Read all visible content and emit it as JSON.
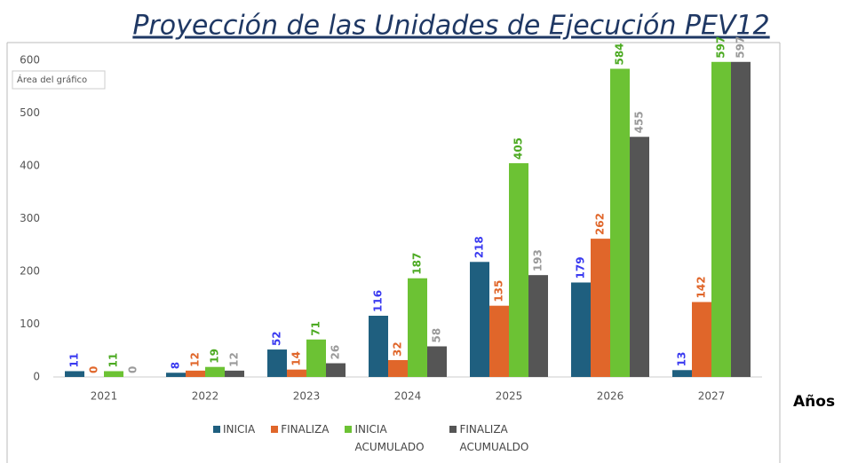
{
  "chart_data": {
    "type": "bar",
    "title": "Proyección de las Unidades de Ejecución PEV12",
    "tooltip": "Área del gráfico",
    "x_label": "Años",
    "categories": [
      "2021",
      "2022",
      "2023",
      "2024",
      "2025",
      "2026",
      "2027"
    ],
    "series": [
      {
        "name": "INICIA",
        "color": "#1f5f7f",
        "label_color": "#3a3af0",
        "values": [
          11,
          8,
          52,
          116,
          218,
          179,
          13
        ]
      },
      {
        "name": "FINALIZA",
        "color": "#e0662a",
        "label_color": "#e0662a",
        "values": [
          0,
          12,
          14,
          32,
          135,
          262,
          142
        ]
      },
      {
        "name": "INICIA ACUMULADO",
        "color": "#6cc234",
        "label_color": "#4caa22",
        "values": [
          11,
          19,
          71,
          187,
          405,
          584,
          597
        ]
      },
      {
        "name": "FINALIZA ACUMUALDO",
        "color": "#555555",
        "label_color": "#9a9a9a",
        "values": [
          0,
          12,
          26,
          58,
          193,
          455,
          597
        ]
      }
    ],
    "ylim": [
      0,
      600
    ],
    "yticks": [
      0,
      100,
      200,
      300,
      400,
      500,
      600
    ],
    "grid": false
  }
}
